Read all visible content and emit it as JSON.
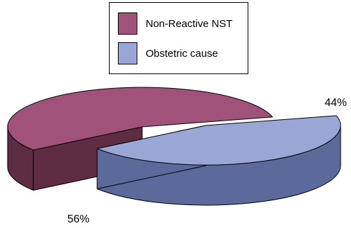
{
  "chart_data": {
    "type": "pie",
    "style": "3d-exploded",
    "categories": [
      "Non-Reactive NST",
      "Obstetric cause"
    ],
    "values": [
      56,
      44
    ],
    "data_labels": [
      "56%",
      "44%"
    ],
    "colors": [
      "#a0527a",
      "#9aa6d6"
    ],
    "side_colors": [
      "#5e2d44",
      "#5b6a9a"
    ],
    "title": "",
    "legend": {
      "position": "top-center",
      "items": [
        "Non-Reactive NST",
        "Obstetric cause"
      ]
    }
  }
}
